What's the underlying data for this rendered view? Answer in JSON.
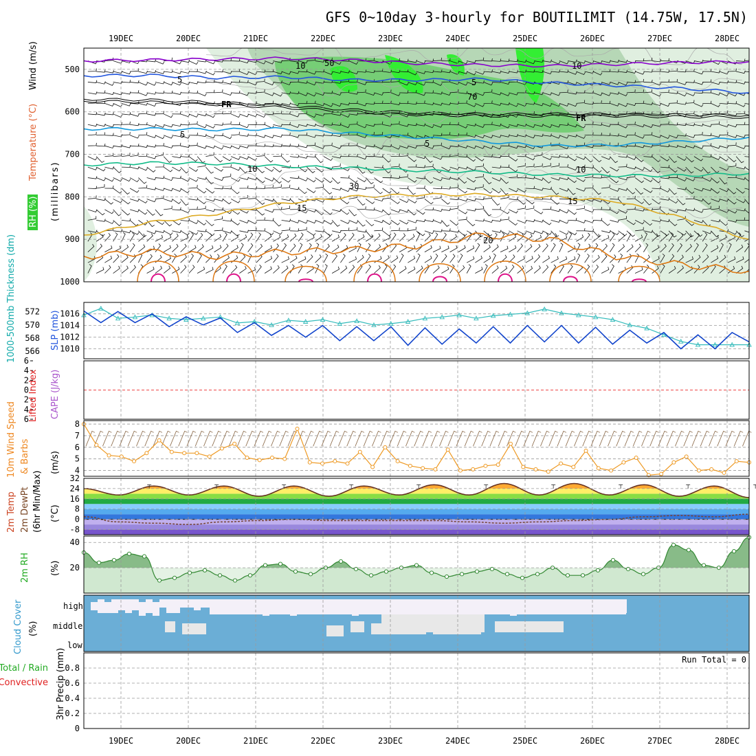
{
  "title": "GFS 0~10day 3-hourly for BOUTILIMIT (14.75W, 17.5N)",
  "dates": [
    "19DEC",
    "20DEC",
    "21DEC",
    "22DEC",
    "23DEC",
    "24DEC",
    "25DEC",
    "26DEC",
    "27DEC",
    "28DEC"
  ],
  "colors": {
    "purple": "#8800cc",
    "blue": "#2255dd",
    "cyan": "#1199dd",
    "teal": "#11bb88",
    "gold": "#ddaa22",
    "orange": "#dd7711",
    "magenta": "#dd1188",
    "rh_light": "#e0efe0",
    "rh_mid": "#a8cfa8",
    "rh_bright": "#33ee33",
    "cloud": "#6baed6",
    "cloud_bg": "#f4f0f8"
  },
  "labels": {
    "rh": "RH (%)",
    "temperature": "Temperature (°C)",
    "wind": "Wind (m/s)",
    "millibars": "(millibars)",
    "thickness": "1000-500mb Thickness (dm)",
    "slp": "SLP (mb)",
    "lifted": "Lifted Index",
    "cape": "CAPE (J/kg)",
    "wind10a": "10m Wind Speed",
    "wind10b": "& Barbs",
    "ms": "(m/s)",
    "temp2m": "2m Temp",
    "dewpt": "2m DewPt",
    "minmax": "(6hr Min/Max)",
    "degc": "(°C)",
    "rh2m": "2m RH",
    "pct": "(%)",
    "cloud": "Cloud Cover",
    "cloud_pct": "(%)",
    "high": "high",
    "middle": "middle",
    "low": "low",
    "precip_a": "Total / Rain",
    "precip_b": "Convective",
    "precip_c": "3hr Precip (mm)",
    "run_total": "Run Total = 0",
    "fr": "FR"
  },
  "chart_data": [
    {
      "type": "line",
      "name": "pressure-height",
      "ylabel": "(millibars)",
      "y_ticks": [
        500,
        600,
        700,
        800,
        900,
        1000
      ],
      "ylim": [
        450,
        1000
      ],
      "contour_labels": [
        "10",
        "5",
        "FR",
        "5",
        "10",
        "15",
        "20",
        "10",
        "5",
        "FR",
        "5",
        "10",
        "15",
        "30",
        "50",
        "70"
      ],
      "isotherms": [
        {
          "label": "10",
          "y": [
            480,
            478,
            476,
            474,
            478,
            486,
            490,
            492,
            488,
            484,
            482
          ]
        },
        {
          "label": "5",
          "y": [
            515,
            514,
            520,
            518,
            525,
            525,
            523,
            532,
            538,
            545,
            555
          ]
        },
        {
          "label": "FR",
          "y": [
            570,
            572,
            578,
            585,
            595,
            602,
            605,
            605,
            605,
            607,
            608
          ]
        },
        {
          "label": "5",
          "y": [
            640,
            640,
            642,
            640,
            650,
            660,
            670,
            680,
            678,
            670,
            660
          ]
        },
        {
          "label": "10",
          "y": [
            725,
            720,
            722,
            728,
            732,
            738,
            742,
            748,
            750,
            750,
            745
          ]
        },
        {
          "label": "15",
          "y": [
            890,
            860,
            840,
            815,
            800,
            795,
            795,
            800,
            810,
            850,
            900
          ]
        },
        {
          "label": "20",
          "y": [
            940,
            930,
            940,
            930,
            925,
            915,
            890,
            900,
            940,
            960,
            975
          ]
        }
      ]
    },
    {
      "type": "line",
      "name": "thickness-slp",
      "ylabel": "SLP (mb)",
      "thickness_ticks": [
        566,
        568,
        570,
        572
      ],
      "slp_ticks": [
        1010,
        1012,
        1014,
        1016
      ],
      "series": [
        {
          "name": "SLP (mb)",
          "values": [
            1016.5,
            1014.5,
            1016.4,
            1014.5,
            1016.0,
            1013.8,
            1015.5,
            1014.1,
            1015.3,
            1012.8,
            1014.5,
            1012.3,
            1014.0,
            1012.0,
            1014.0,
            1011.4,
            1013.8,
            1011.4,
            1013.8,
            1010.6,
            1013.6,
            1010.8,
            1013.4,
            1011.0,
            1013.8,
            1011.0,
            1014.0,
            1011.2,
            1014.0,
            1011.0,
            1013.7,
            1010.8,
            1013.2,
            1011.0,
            1012.8,
            1010.0,
            1012.4,
            1010.0,
            1012.8,
            1011.2
          ]
        },
        {
          "name": "1000-500mb Thickness (dm)",
          "values": [
            571.5,
            572.5,
            571.0,
            571.2,
            571.5,
            571.0,
            570.8,
            571.0,
            571.2,
            570.3,
            570.5,
            570.0,
            570.7,
            570.5,
            570.8,
            570.2,
            570.6,
            570.0,
            570.2,
            570.5,
            571.0,
            571.2,
            571.5,
            571.0,
            571.4,
            571.6,
            571.8,
            572.4,
            571.8,
            571.5,
            571.2,
            570.8,
            570.0,
            569.5,
            568.5,
            567.5,
            567.0,
            567.0,
            567.0,
            567.0
          ]
        }
      ]
    },
    {
      "type": "line",
      "name": "lifted-cape",
      "ylabel": "Lifted Index",
      "y_ticks": [
        6,
        4,
        2,
        0,
        2,
        4,
        6
      ]
    },
    {
      "type": "line",
      "name": "10m-wind",
      "ylabel": "(m/s)",
      "y_ticks": [
        4,
        5,
        6,
        7,
        8
      ],
      "ylim": [
        3.5,
        8.3
      ],
      "series": [
        {
          "name": "10m Wind Speed",
          "values": [
            8.0,
            6.2,
            5.3,
            5.2,
            4.8,
            5.5,
            6.6,
            5.6,
            5.5,
            5.5,
            5.2,
            5.9,
            6.3,
            5.1,
            4.9,
            5.1,
            5.0,
            7.6,
            4.7,
            4.6,
            4.8,
            4.6,
            5.6,
            4.3,
            6.0,
            4.8,
            4.4,
            4.2,
            4.1,
            5.8,
            4.0,
            4.1,
            4.4,
            4.5,
            6.3,
            4.3,
            4.1,
            3.9,
            4.6,
            4.3,
            5.7,
            4.2,
            4.0,
            4.7,
            5.1,
            3.6,
            3.7,
            4.7,
            5.2,
            4.0,
            4.1,
            3.8,
            4.8,
            4.7
          ]
        }
      ]
    },
    {
      "type": "area",
      "name": "2m-temp-dewpt",
      "ylabel": "(°C)",
      "y_ticks": [
        -8,
        0,
        8,
        16,
        24,
        32
      ],
      "ylim": [
        -12,
        32
      ],
      "series": [
        {
          "name": "2m Temp",
          "values": [
            24,
            19,
            26,
            19,
            26,
            18,
            26,
            18,
            26,
            19,
            27,
            19,
            28,
            19,
            28,
            19,
            27,
            18,
            26,
            17
          ]
        },
        {
          "name": "2m DewPt",
          "values": [
            2,
            -2,
            -3,
            -4,
            -2,
            -1,
            0,
            -1,
            -1,
            -1,
            -1,
            -2,
            -3,
            -2,
            -1,
            0,
            2,
            3,
            2,
            4
          ]
        }
      ]
    },
    {
      "type": "area",
      "name": "2m-rh",
      "ylabel": "(%)",
      "y_ticks": [
        20,
        40
      ],
      "ylim": [
        0,
        45
      ],
      "series": [
        {
          "name": "2m RH",
          "values": [
            32,
            24,
            26,
            31,
            29,
            10,
            12,
            16,
            18,
            14,
            10,
            14,
            22,
            23,
            17,
            15,
            20,
            25,
            19,
            14,
            17,
            20,
            22,
            16,
            13,
            15,
            17,
            19,
            15,
            12,
            15,
            20,
            14,
            14,
            18,
            26,
            19,
            15,
            20,
            38,
            34,
            22,
            20,
            33,
            44
          ]
        }
      ]
    },
    {
      "type": "bar",
      "name": "cloud-cover",
      "categories": [
        "high",
        "middle",
        "low"
      ],
      "ylabel": "(%)"
    },
    {
      "type": "bar",
      "name": "3hr-precip",
      "ylabel": "3hr Precip (mm)",
      "y_ticks": [
        0,
        0.2,
        0.4,
        0.6,
        0.8
      ],
      "ylim": [
        0,
        1
      ],
      "values": []
    }
  ]
}
